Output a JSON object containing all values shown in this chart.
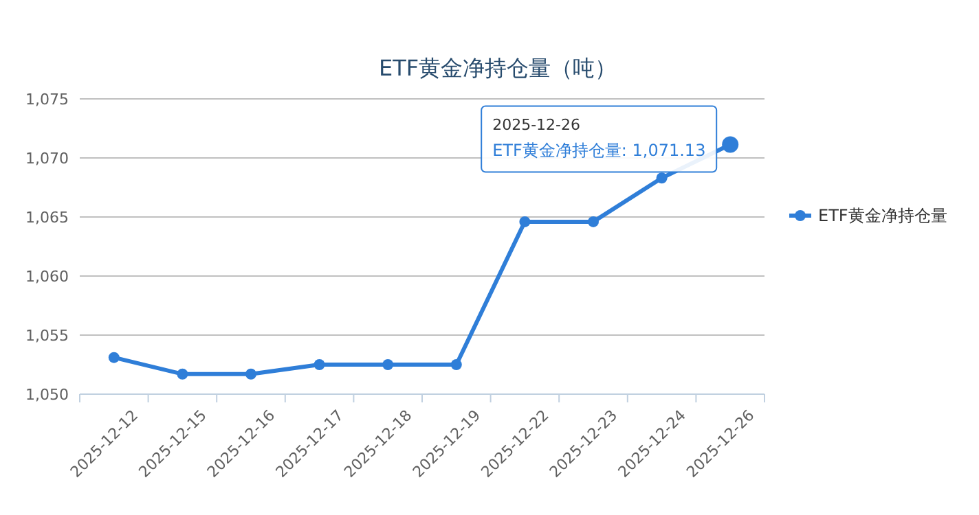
{
  "chart_data": {
    "type": "line",
    "title": "ETF黄金净持仓量（吨）",
    "categories": [
      "2025-12-12",
      "2025-12-15",
      "2025-12-16",
      "2025-12-17",
      "2025-12-18",
      "2025-12-19",
      "2025-12-22",
      "2025-12-23",
      "2025-12-24",
      "2025-12-26"
    ],
    "series": [
      {
        "name": "ETF黄金净持仓量",
        "color": "#2f7ed8",
        "values": [
          1053.1,
          1051.7,
          1051.7,
          1052.5,
          1052.5,
          1052.5,
          1064.6,
          1064.6,
          1068.3,
          1071.13
        ]
      }
    ],
    "ylim": [
      1050,
      1075
    ],
    "yticks": [
      {
        "value": 1050,
        "label": "1,050"
      },
      {
        "value": 1055,
        "label": "1,055"
      },
      {
        "value": 1060,
        "label": "1,060"
      },
      {
        "value": 1065,
        "label": "1,065"
      },
      {
        "value": 1070,
        "label": "1,070"
      },
      {
        "value": 1075,
        "label": "1,075"
      }
    ],
    "grid": "y",
    "legend": "right",
    "marker": "circle",
    "line_style": "solid",
    "annotations": [
      "2025-12-26",
      "ETF黄金净持仓量: 1,071.13"
    ]
  }
}
